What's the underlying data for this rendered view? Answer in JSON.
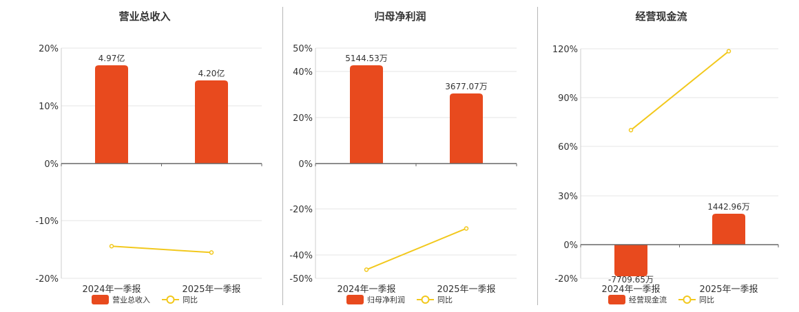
{
  "chart_data": [
    {
      "type": "bar+line",
      "title": "营业总收入",
      "categories": [
        "2024年一季报",
        "2025年一季报"
      ],
      "bar_series": {
        "name": "营业总收入",
        "color": "#e84a1e",
        "values_label": [
          "4.97亿",
          "4.20亿"
        ],
        "values": [
          4.97,
          4.2
        ],
        "unit": "亿"
      },
      "line_series": {
        "name": "同比",
        "color": "#f2c81c",
        "values": [
          -14.4,
          -15.5
        ]
      },
      "y_ticks": [
        "20%",
        "10%",
        "0%",
        "-10%",
        "-20%"
      ],
      "ylim": [
        -20,
        20
      ]
    },
    {
      "type": "bar+line",
      "title": "归母净利润",
      "categories": [
        "2024年一季报",
        "2025年一季报"
      ],
      "bar_series": {
        "name": "归母净利润",
        "color": "#e84a1e",
        "values_label": [
          "5144.53万",
          "3677.07万"
        ],
        "values": [
          5144.53,
          3677.07
        ],
        "unit": "万"
      },
      "line_series": {
        "name": "同比",
        "color": "#f2c81c",
        "values": [
          -46.3,
          -28.5
        ]
      },
      "y_ticks": [
        "50%",
        "40%",
        "20%",
        "0%",
        "-20%",
        "-40%",
        "-50%"
      ],
      "ylim": [
        -50,
        50
      ]
    },
    {
      "type": "bar+line",
      "title": "经营现金流",
      "categories": [
        "2024年一季报",
        "2025年一季报"
      ],
      "bar_series": {
        "name": "经营现金流",
        "color": "#e84a1e",
        "values_label": [
          "-7709.65万",
          "1442.96万"
        ],
        "values": [
          -7709.65,
          1442.96
        ],
        "unit": "万"
      },
      "line_series": {
        "name": "同比",
        "color": "#f2c81c",
        "values": [
          70.0,
          118.5
        ]
      },
      "y_ticks": [
        "120%",
        "90%",
        "60%",
        "30%",
        "0%",
        "-20%"
      ],
      "ylim": [
        -20,
        120
      ]
    }
  ]
}
